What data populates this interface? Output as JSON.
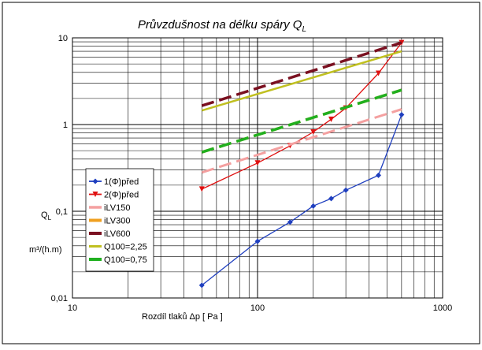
{
  "chart_data": {
    "type": "line",
    "title": "Průvzdušnost na délku spáry  Q",
    "title_subscript": "L",
    "xlabel": "Rozdíl tlaků Δp  [ Pa ]",
    "ylabel_main": "Q",
    "ylabel_sub": "L",
    "ylabel_unit": "m³/(h.m)",
    "xscale": "log",
    "yscale": "log",
    "xlim": [
      10,
      1000
    ],
    "ylim": [
      0.01,
      10
    ],
    "x_tick_labels": [
      "10",
      "100",
      "1000"
    ],
    "y_tick_labels": [
      "0,01",
      "0,1",
      "1",
      "10"
    ],
    "grid": true,
    "legend_position": "left-lower",
    "series": [
      {
        "name": "1(Φ)před",
        "color": "#1f3fbf",
        "style": "solid-diamond",
        "x": [
          50,
          100,
          150,
          200,
          250,
          300,
          450,
          600
        ],
        "y": [
          0.014,
          0.045,
          0.075,
          0.115,
          0.14,
          0.175,
          0.26,
          1.3
        ]
      },
      {
        "name": "2(Φ)před",
        "color": "#e01010",
        "style": "solid-triangle",
        "x": [
          50,
          100,
          150,
          200,
          250,
          300,
          450,
          600
        ],
        "y": [
          0.18,
          0.36,
          0.57,
          0.82,
          1.15,
          1.55,
          3.9,
          8.8
        ]
      },
      {
        "name": "iLV150",
        "color": "#f4a0a0",
        "style": "dashed",
        "x": [
          50,
          600
        ],
        "y": [
          0.28,
          1.5
        ]
      },
      {
        "name": "iLV300",
        "color": "#f0a020",
        "style": "dashed",
        "x": [
          50,
          600
        ],
        "y": [
          0.48,
          2.5
        ]
      },
      {
        "name": "iLV600",
        "color": "#7a1020",
        "style": "dashed",
        "x": [
          50,
          600
        ],
        "y": [
          1.65,
          8.8
        ]
      },
      {
        "name": "Q100=2,25",
        "color": "#c0c020",
        "style": "solid",
        "x": [
          50,
          600
        ],
        "y": [
          1.45,
          7.0
        ]
      },
      {
        "name": "Q100=0,75",
        "color": "#20b020",
        "style": "dashed",
        "x": [
          50,
          600
        ],
        "y": [
          0.48,
          2.5
        ]
      }
    ]
  }
}
